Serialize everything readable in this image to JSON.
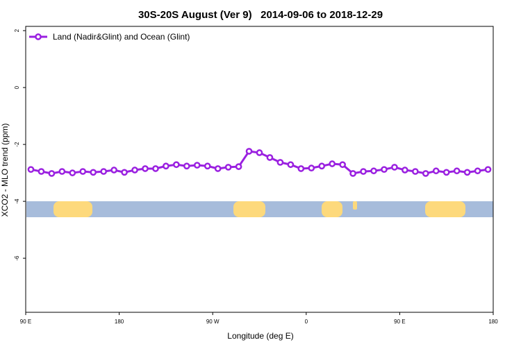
{
  "chart_data": {
    "type": "line",
    "title": "30S-20S August (Ver 9)   2014-09-06 to 2018-12-29",
    "xlabel": "Longitude (deg E)",
    "ylabel": "XCO2 - MLO trend (ppm)",
    "xlim": [
      90,
      540
    ],
    "ylim": [
      -7.9,
      2.15
    ],
    "xticks": [
      {
        "value": 90,
        "label": "90 E"
      },
      180,
      {
        "value": 270,
        "label": "90 W"
      },
      {
        "value": 360,
        "label": "0"
      },
      {
        "value": 450,
        "label": "90 E"
      },
      {
        "value": 540,
        "label": "180"
      }
    ],
    "yticks": [
      2,
      0,
      -2,
      -4,
      -6
    ],
    "legend": "top-left",
    "x": [
      95,
      105,
      115,
      125,
      135,
      145,
      155,
      165,
      175,
      185,
      195,
      205,
      215,
      225,
      235,
      245,
      255,
      265,
      275,
      285,
      295,
      305,
      315,
      325,
      335,
      345,
      355,
      365,
      375,
      385,
      395,
      405,
      415,
      425,
      435,
      445,
      455,
      465,
      475,
      485,
      495,
      505,
      515,
      525,
      535
    ],
    "series": [
      {
        "name": "Land (Nadir&Glint) and Ocean (Glint)",
        "color": "#9a20e0",
        "values": [
          -2.88,
          -2.95,
          -3.02,
          -2.95,
          -3.0,
          -2.95,
          -2.98,
          -2.95,
          -2.9,
          -2.98,
          -2.9,
          -2.85,
          -2.85,
          -2.76,
          -2.71,
          -2.76,
          -2.73,
          -2.76,
          -2.85,
          -2.8,
          -2.78,
          -2.24,
          -2.29,
          -2.46,
          -2.63,
          -2.71,
          -2.85,
          -2.83,
          -2.76,
          -2.68,
          -2.71,
          -3.02,
          -2.95,
          -2.93,
          -2.88,
          -2.8,
          -2.9,
          -2.95,
          -3.02,
          -2.93,
          -2.98,
          -2.93,
          -2.98,
          -2.93,
          -2.88
        ]
      }
    ]
  }
}
